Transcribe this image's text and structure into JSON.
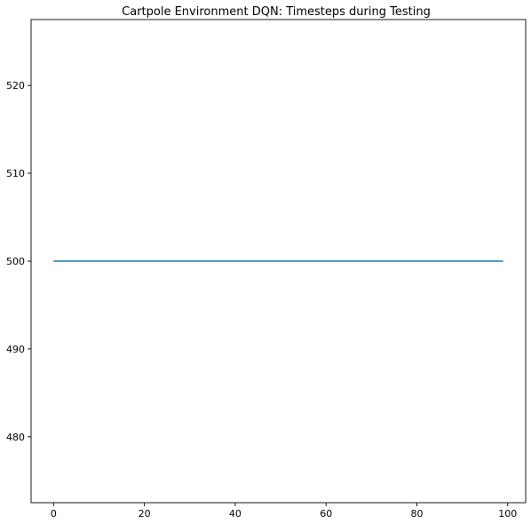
{
  "chart_data": {
    "type": "line",
    "title": "Cartpole Environment DQN: Timesteps during Testing",
    "xlabel": "",
    "ylabel": "",
    "xlim": [
      -4.95,
      103.95
    ],
    "ylim": [
      472.5,
      527.5
    ],
    "xticks": [
      0,
      20,
      40,
      60,
      80,
      100
    ],
    "yticks": [
      480,
      490,
      500,
      510,
      520
    ],
    "grid": false,
    "legend": "none",
    "series": [
      {
        "color": "#1f77b4",
        "x": [
          0,
          99
        ],
        "y": [
          500,
          500
        ]
      }
    ]
  }
}
